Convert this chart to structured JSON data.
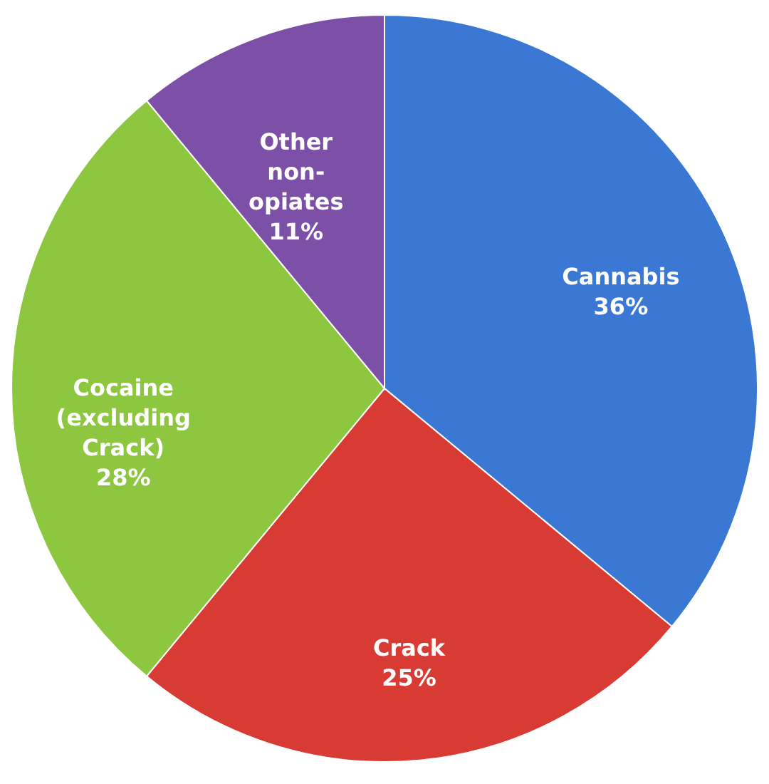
{
  "chart_data": {
    "type": "pie",
    "categories": [
      "Cannabis",
      "Crack",
      "Cocaine (excluding Crack)",
      "Other non-opiates"
    ],
    "values": [
      36,
      25,
      28,
      11
    ],
    "value_labels": [
      "36%",
      "25%",
      "28%",
      "11%"
    ],
    "colors": [
      "#3a78d4",
      "#d83a34",
      "#8dc63f",
      "#7d50a8"
    ],
    "legend": false
  }
}
